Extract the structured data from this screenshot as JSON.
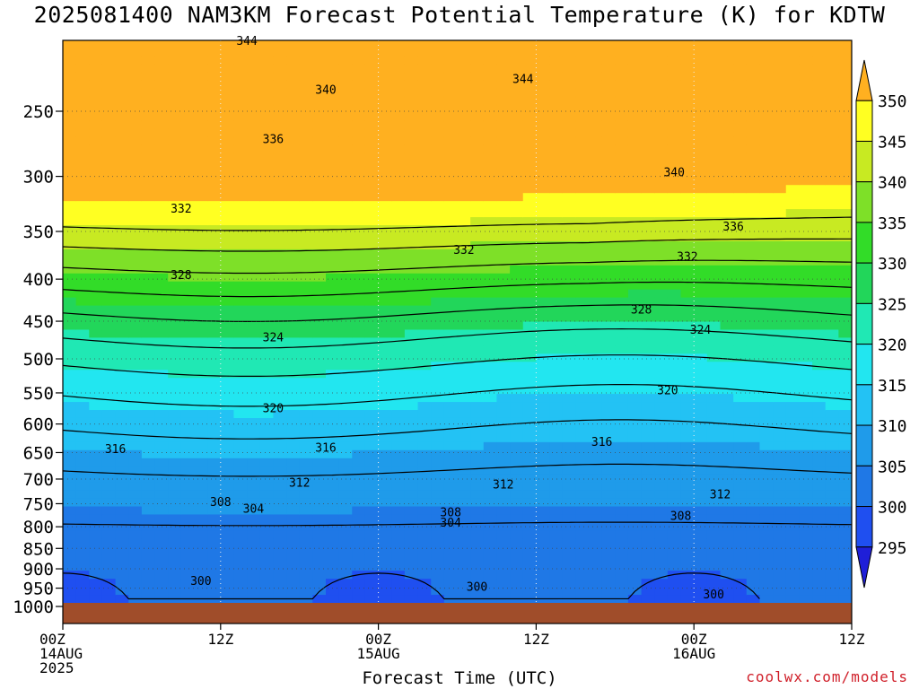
{
  "chart_data": {
    "type": "heatmap",
    "title": "2025081400 NAM3KM Forecast Potential Temperature (K) for KDTW",
    "xlabel": "Forecast Time (UTC)",
    "ylabel": "",
    "y_ticks": [
      250,
      300,
      350,
      400,
      450,
      500,
      550,
      600,
      650,
      700,
      750,
      800,
      850,
      900,
      950,
      1000
    ],
    "ylim": [
      1000,
      200
    ],
    "x_range_hours": [
      0,
      60
    ],
    "x_ticks": [
      {
        "hour": 0,
        "lines": [
          "00Z",
          "14AUG",
          "2025"
        ]
      },
      {
        "hour": 12,
        "lines": [
          "12Z"
        ]
      },
      {
        "hour": 24,
        "lines": [
          "00Z",
          "15AUG"
        ]
      },
      {
        "hour": 36,
        "lines": [
          "12Z"
        ]
      },
      {
        "hour": 48,
        "lines": [
          "00Z",
          "16AUG"
        ]
      },
      {
        "hour": 60,
        "lines": [
          "12Z"
        ]
      }
    ],
    "grid": true,
    "colorbar": {
      "labels": [
        295,
        300,
        305,
        310,
        315,
        320,
        325,
        330,
        335,
        340,
        345,
        350
      ],
      "colors": [
        "#1f1fd8",
        "#1f4ff0",
        "#1f78e6",
        "#1f9bea",
        "#23c2f4",
        "#22e6f0",
        "#20e8b4",
        "#22d65a",
        "#32dc28",
        "#7ee028",
        "#c8ea22",
        "#ffff22",
        "#ffb020"
      ],
      "extend": "both"
    },
    "contour_interval": 4,
    "contours": [
      {
        "level": 300,
        "label_positions": [
          [
            10.5,
            930
          ],
          [
            31.5,
            945
          ],
          [
            49.5,
            965
          ]
        ]
      },
      {
        "level": 304,
        "label_positions": [
          [
            14.5,
            760
          ],
          [
            29.5,
            790
          ]
        ]
      },
      {
        "level": 308,
        "label_positions": [
          [
            12,
            745
          ],
          [
            29.5,
            767
          ],
          [
            47,
            775
          ]
        ]
      },
      {
        "level": 312,
        "label_positions": [
          [
            18,
            706
          ],
          [
            33.5,
            710
          ],
          [
            50,
            730
          ]
        ]
      },
      {
        "level": 316,
        "label_positions": [
          [
            4,
            643
          ],
          [
            20,
            640
          ],
          [
            41,
            630
          ]
        ]
      },
      {
        "level": 320,
        "label_positions": [
          [
            16,
            573
          ],
          [
            46,
            545
          ]
        ]
      },
      {
        "level": 324,
        "label_positions": [
          [
            16,
            470
          ],
          [
            48.5,
            460
          ]
        ]
      },
      {
        "level": 328,
        "label_positions": [
          [
            9,
            395
          ],
          [
            44,
            435
          ]
        ]
      },
      {
        "level": 332,
        "label_positions": [
          [
            9,
            328
          ],
          [
            30.5,
            368
          ],
          [
            47.5,
            375
          ]
        ]
      },
      {
        "level": 336,
        "label_positions": [
          [
            16,
            270
          ],
          [
            51,
            345
          ]
        ]
      },
      {
        "level": 340,
        "label_positions": [
          [
            20,
            235
          ],
          [
            46.5,
            296
          ]
        ]
      },
      {
        "level": 344,
        "label_positions": [
          [
            14,
            205
          ],
          [
            35,
            228
          ]
        ]
      }
    ],
    "surface_bar": true
  },
  "credit": "coolwx.com/models"
}
